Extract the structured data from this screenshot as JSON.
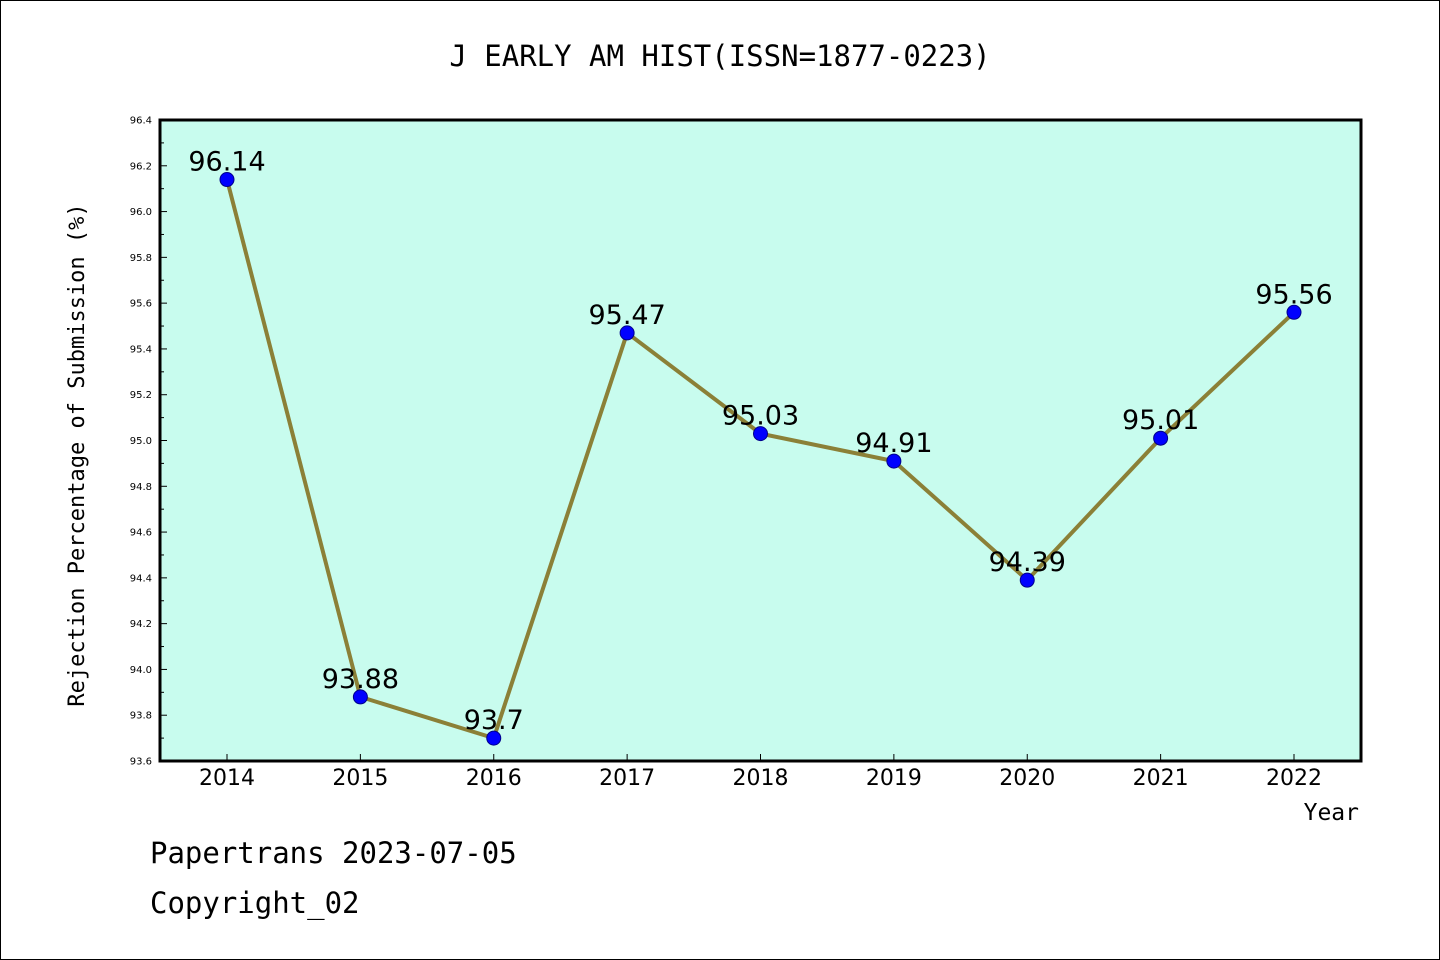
{
  "chart_data": {
    "type": "line",
    "title": "J EARLY AM HIST(ISSN=1877-0223)",
    "xlabel": "Year",
    "ylabel": "Rejection Percentage of Submission (%)",
    "categories": [
      "2014",
      "2015",
      "2016",
      "2017",
      "2018",
      "2019",
      "2020",
      "2021",
      "2022"
    ],
    "series": [
      {
        "values": [
          96.14,
          93.88,
          93.7,
          95.47,
          95.03,
          94.91,
          94.39,
          95.01,
          95.56
        ],
        "labels": [
          "96.14",
          "93.88",
          "93.7",
          "95.47",
          "95.03",
          "94.91",
          "94.39",
          "95.01",
          "95.56"
        ]
      }
    ],
    "ylim": [
      93.6,
      96.4
    ],
    "yticks": [
      "93.6",
      "93.8",
      "94.0",
      "94.2",
      "94.4",
      "94.6",
      "94.8",
      "95.0",
      "95.2",
      "95.4",
      "95.6",
      "95.8",
      "96.0",
      "96.2",
      "96.4"
    ],
    "grid": false,
    "colors": {
      "plot_background": "#c8fcee",
      "line": "#8b8037",
      "marker": "#0000ff"
    }
  },
  "footer": {
    "line1": "Papertrans 2023-07-05",
    "line2": "Copyright_02"
  }
}
